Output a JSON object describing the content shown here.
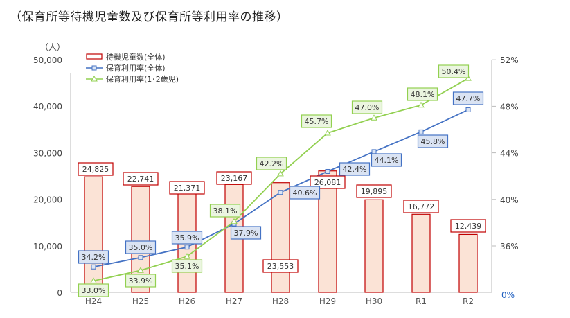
{
  "title": "（保育所等待機児童数及び保育所等利用率の推移）",
  "chart_data": {
    "type": "bar+line",
    "title": "（保育所等待機児童数及び保育所等利用率の推移）",
    "left_unit": "（人）",
    "categories": [
      "H24",
      "H25",
      "H26",
      "H27",
      "H28",
      "H29",
      "H30",
      "R1",
      "R2"
    ],
    "left_axis": {
      "range": [
        0,
        50000
      ],
      "ticks": [
        "0",
        "10,000",
        "20,000",
        "30,000",
        "40,000",
        "50,000"
      ]
    },
    "right_axis": {
      "ticks": [
        "0%",
        "36%",
        "40%",
        "44%",
        "48%",
        "52%"
      ],
      "broken": true
    },
    "grid": false,
    "legend_position": "top-left",
    "series": [
      {
        "name": "待機児童数(全体)",
        "type": "bar",
        "values": [
          24825,
          22741,
          21371,
          23167,
          23553,
          26081,
          19895,
          16772,
          12439
        ],
        "labels": [
          "24,825",
          "22,741",
          "21,371",
          "23,167",
          "23,553",
          "26,081",
          "19,895",
          "16,772",
          "12,439"
        ],
        "color": "#C00000",
        "fill": "#FBE3D6"
      },
      {
        "name": "保育利用率(全体)",
        "type": "line",
        "axis": "right",
        "values": [
          34.2,
          35.0,
          35.9,
          37.9,
          40.6,
          42.4,
          44.1,
          45.8,
          47.7
        ],
        "labels": [
          "34.2%",
          "35.0%",
          "35.9%",
          "37.9%",
          "40.6%",
          "42.4%",
          "44.1%",
          "45.8%",
          "47.7%"
        ],
        "color": "#4472C4",
        "marker": "square"
      },
      {
        "name": "保育利用率(1･2歳児)",
        "type": "line",
        "axis": "right",
        "values": [
          33.0,
          33.9,
          35.1,
          38.1,
          42.2,
          45.7,
          47.0,
          48.1,
          50.4
        ],
        "labels": [
          "33.0%",
          "33.9%",
          "35.1%",
          "38.1%",
          "42.2%",
          "45.7%",
          "47.0%",
          "48.1%",
          "50.4%"
        ],
        "color": "#92D050",
        "marker": "triangle"
      }
    ]
  }
}
